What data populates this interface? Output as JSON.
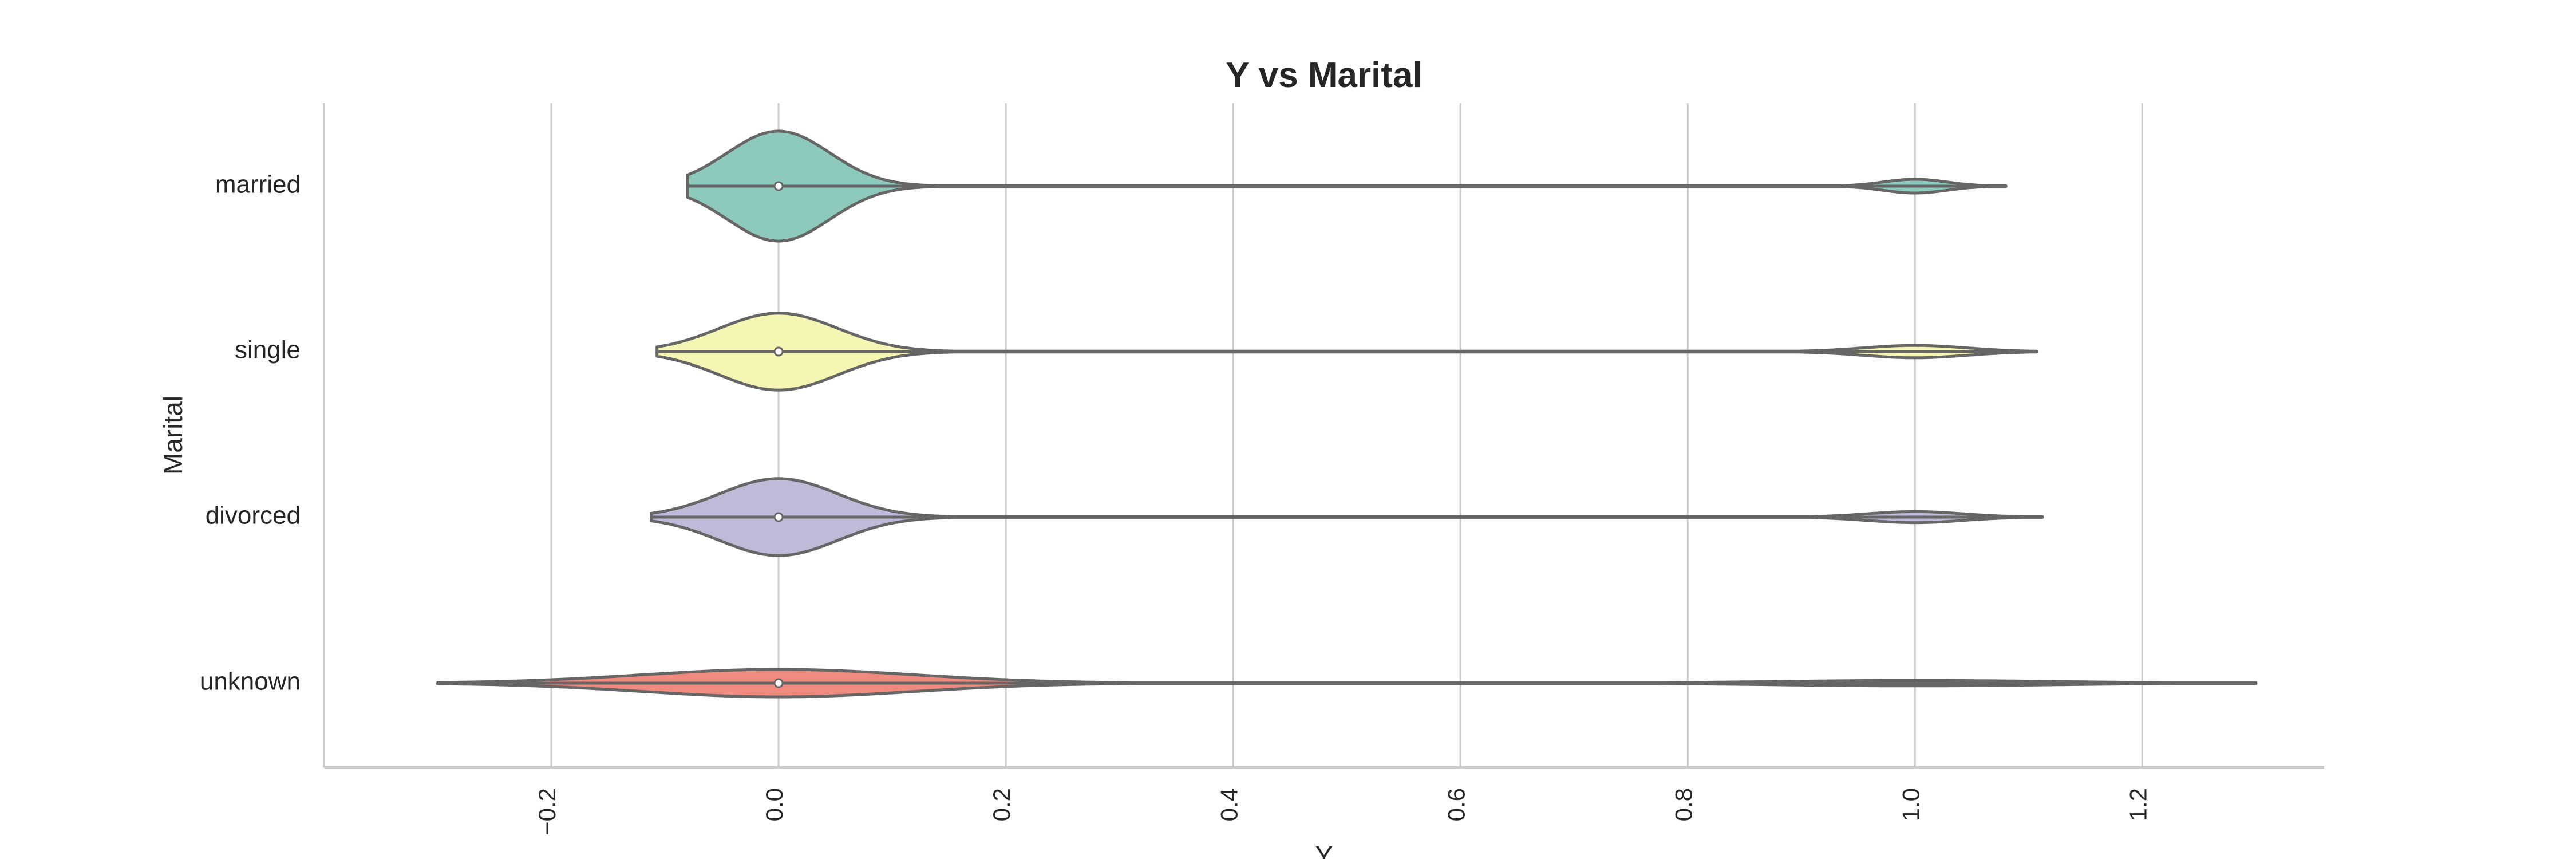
{
  "chart_data": {
    "type": "violin",
    "title": "Y vs Marital",
    "xlabel": "Y",
    "ylabel": "Marital",
    "xlim": [
      -0.4,
      1.36
    ],
    "xticks": [
      -0.2,
      0.0,
      0.2,
      0.4,
      0.6,
      0.8,
      1.0,
      1.2
    ],
    "xtick_labels": [
      "−0.2",
      "0.0",
      "0.2",
      "0.4",
      "0.6",
      "0.8",
      "1.0",
      "1.2"
    ],
    "grid": "vertical",
    "categories": [
      "married",
      "single",
      "divorced",
      "unknown"
    ],
    "series": [
      {
        "category": "married",
        "color": "#8dc9bc",
        "median": 0.0,
        "extent": [
          -0.08,
          1.08
        ],
        "density": {
          "mode0_halfwidth": 0.8,
          "mode0_sigma": 0.045,
          "mode1_halfwidth": 0.1,
          "mode1_sigma": 0.028
        }
      },
      {
        "category": "single",
        "color": "#f5f6b4",
        "median": 0.0,
        "extent": [
          -0.107,
          1.107
        ],
        "density": {
          "mode0_halfwidth": 0.56,
          "mode0_sigma": 0.052,
          "mode1_halfwidth": 0.09,
          "mode1_sigma": 0.045
        }
      },
      {
        "category": "divorced",
        "color": "#bdbbd7",
        "median": 0.0,
        "extent": [
          -0.112,
          1.112
        ],
        "density": {
          "mode0_halfwidth": 0.56,
          "mode0_sigma": 0.052,
          "mode1_halfwidth": 0.08,
          "mode1_sigma": 0.042
        }
      },
      {
        "category": "unknown",
        "color": "#ee8a7e",
        "median": 0.0,
        "extent": [
          -0.3,
          1.3
        ],
        "density": {
          "mode0_halfwidth": 0.2,
          "mode0_sigma": 0.12,
          "mode1_halfwidth": 0.04,
          "mode1_sigma": 0.12
        }
      }
    ]
  }
}
